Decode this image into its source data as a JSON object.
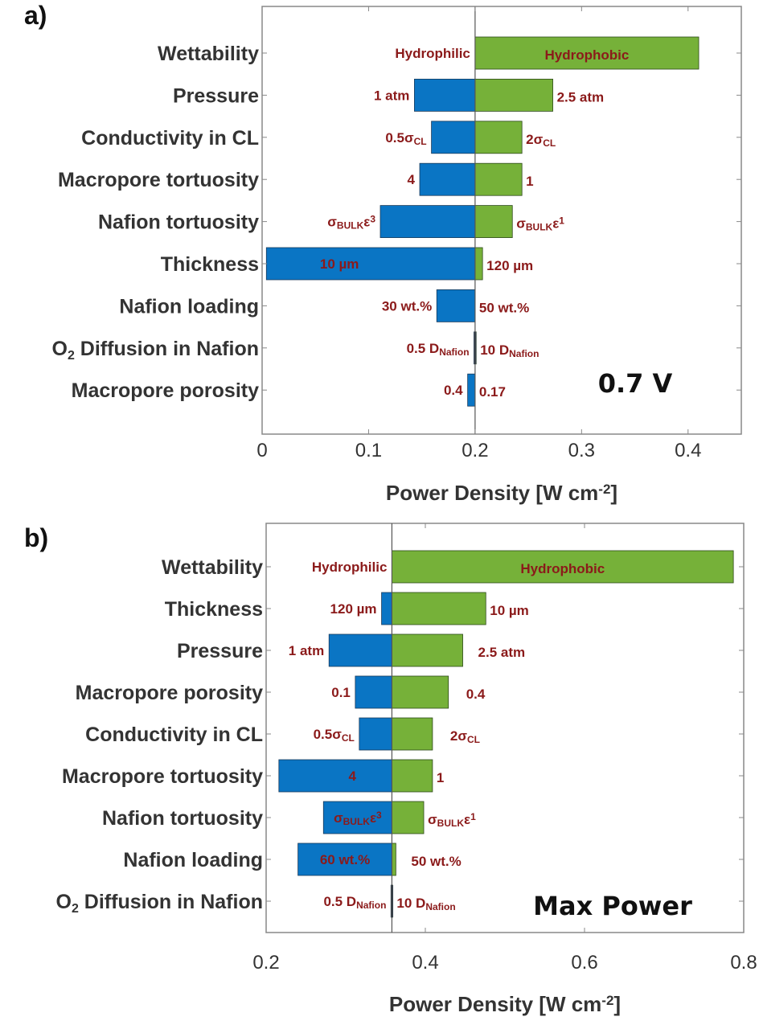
{
  "colors": {
    "low": "#0a75c4",
    "high": "#76b139",
    "label": "#8b1a1a",
    "axis": "#888888"
  },
  "chart_data": [
    {
      "type": "bar",
      "orientation": "horizontal-tornado",
      "panel_label": "a)",
      "annotation": "0.7 V",
      "xlabel": "Power Density [W cm",
      "xlabel_sup": "-2",
      "xlabel_end": "]",
      "xlim": [
        0,
        0.45
      ],
      "xticks": [
        0,
        0.1,
        0.2,
        0.3,
        0.4
      ],
      "xtick_labels": [
        "0",
        "0.1",
        "0.2",
        "0.3",
        "0.4"
      ],
      "baseline": 0.2,
      "grid": false,
      "categories": [
        "Wettability",
        "Pressure",
        "Conductivity in CL",
        "Macropore tortuosity",
        "Nafion tortuosity",
        "Thickness",
        "Nafion loading",
        "O2 Diffusion in Nafion",
        "Macropore porosity"
      ],
      "low_values": [
        0.2,
        0.143,
        0.159,
        0.148,
        0.111,
        0.004,
        0.164,
        0.199,
        0.193
      ],
      "high_values": [
        0.41,
        0.273,
        0.244,
        0.244,
        0.235,
        0.207,
        0.2,
        0.201,
        0.2
      ],
      "low_labels": [
        [
          {
            "t": "Hydrophilic"
          }
        ],
        [
          {
            "t": "1 atm"
          }
        ],
        [
          {
            "t": "0.5σ"
          },
          {
            "t": "CL",
            "s": "sub"
          }
        ],
        [
          {
            "t": "4"
          }
        ],
        [
          {
            "t": "σ"
          },
          {
            "t": "BULK",
            "s": "sub"
          },
          {
            "t": "ε"
          },
          {
            "t": "3",
            "s": "sup"
          }
        ],
        [
          {
            "t": "10 µm"
          }
        ],
        [
          {
            "t": "30 wt.%"
          }
        ],
        [
          {
            "t": "0.5 D"
          },
          {
            "t": "Nafion",
            "s": "sub"
          }
        ],
        [
          {
            "t": "0.4"
          }
        ]
      ],
      "high_labels": [
        [
          {
            "t": "Hydrophobic"
          }
        ],
        [
          {
            "t": "2.5 atm"
          }
        ],
        [
          {
            "t": "2σ"
          },
          {
            "t": "CL",
            "s": "sub"
          }
        ],
        [
          {
            "t": "1"
          }
        ],
        [
          {
            "t": "σ"
          },
          {
            "t": "BULK",
            "s": "sub"
          },
          {
            "t": "ε"
          },
          {
            "t": "1",
            "s": "sup"
          }
        ],
        [
          {
            "t": "120 µm"
          }
        ],
        [
          {
            "t": "50 wt.%"
          }
        ],
        [
          {
            "t": "10 D"
          },
          {
            "t": "Nafion",
            "s": "sub"
          }
        ],
        [
          {
            "t": "0.17"
          }
        ]
      ]
    },
    {
      "type": "bar",
      "orientation": "horizontal-tornado",
      "panel_label": "b)",
      "annotation": "Max Power",
      "xlabel": "Power Density [W cm",
      "xlabel_sup": "-2",
      "xlabel_end": "]",
      "xlim": [
        0.2,
        0.8
      ],
      "xticks": [
        0.2,
        0.4,
        0.6,
        0.8
      ],
      "xtick_labels": [
        "0.2",
        "0.4",
        "0.6",
        "0.8"
      ],
      "baseline": 0.358,
      "grid": false,
      "categories": [
        "Wettability",
        "Thickness",
        "Pressure",
        "Macropore porosity",
        "Conductivity in CL",
        "Macropore tortuosity",
        "Nafion tortuosity",
        "Nafion loading",
        "O2 Diffusion in Nafion"
      ],
      "low_values": [
        0.358,
        0.345,
        0.279,
        0.312,
        0.317,
        0.216,
        0.272,
        0.24,
        0.357
      ],
      "high_values": [
        0.787,
        0.476,
        0.447,
        0.429,
        0.409,
        0.409,
        0.398,
        0.363,
        0.359
      ],
      "low_labels": [
        [
          {
            "t": "Hydrophilic"
          }
        ],
        [
          {
            "t": "120 µm"
          }
        ],
        [
          {
            "t": "1 atm"
          }
        ],
        [
          {
            "t": "0.1"
          }
        ],
        [
          {
            "t": "0.5σ"
          },
          {
            "t": "CL",
            "s": "sub"
          }
        ],
        [
          {
            "t": "4"
          }
        ],
        [
          {
            "t": "σ"
          },
          {
            "t": "BULK",
            "s": "sub"
          },
          {
            "t": "ε"
          },
          {
            "t": "3",
            "s": "sup"
          }
        ],
        [
          {
            "t": "60 wt.%"
          }
        ],
        [
          {
            "t": "0.5 D"
          },
          {
            "t": "Nafion",
            "s": "sub"
          }
        ]
      ],
      "high_labels": [
        [
          {
            "t": "Hydrophobic"
          }
        ],
        [
          {
            "t": "10 µm"
          }
        ],
        [
          {
            "t": "2.5 atm"
          }
        ],
        [
          {
            "t": "0.4"
          }
        ],
        [
          {
            "t": "2σ"
          },
          {
            "t": "CL",
            "s": "sub"
          }
        ],
        [
          {
            "t": "1"
          }
        ],
        [
          {
            "t": "σ"
          },
          {
            "t": "BULK",
            "s": "sub"
          },
          {
            "t": "ε"
          },
          {
            "t": "1",
            "s": "sup"
          }
        ],
        [
          {
            "t": "50 wt.%"
          }
        ],
        [
          {
            "t": "10 D"
          },
          {
            "t": "Nafion",
            "s": "sub"
          }
        ]
      ]
    }
  ]
}
